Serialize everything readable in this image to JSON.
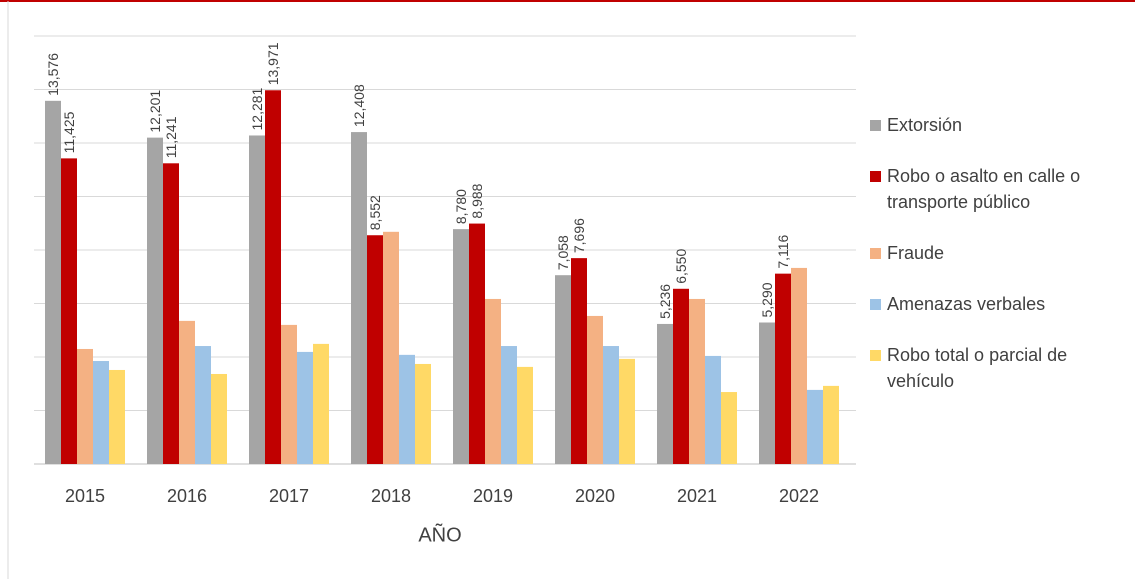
{
  "chart_data": {
    "type": "bar",
    "x_label": "AÑO",
    "categories": [
      "2015",
      "2016",
      "2017",
      "2018",
      "2019",
      "2020",
      "2021",
      "2022"
    ],
    "series": [
      {
        "name": "Extorsión",
        "color": "#a5a5a5",
        "values": [
          13576,
          12201,
          12281,
          12408,
          8780,
          7058,
          5236,
          5290
        ],
        "value_labels": [
          "13,576",
          "12,201",
          "12,281",
          "12,408",
          "8,780",
          "7,058",
          "5,236",
          "5,290"
        ]
      },
      {
        "name": "Robo o asalto en calle o transporte público",
        "color": "#c00000",
        "values": [
          11425,
          11241,
          13971,
          8552,
          8988,
          7696,
          6550,
          7116
        ],
        "value_labels": [
          "11,425",
          "11,241",
          "13,971",
          "8,552",
          "8,988",
          "7,696",
          "6,550",
          "7,116"
        ]
      },
      {
        "name": "Fraude",
        "color": "#f4b183",
        "values": [
          4300,
          5350,
          5200,
          8680,
          6170,
          5535,
          6170,
          7330
        ]
      },
      {
        "name": "Amenazas verbales",
        "color": "#9dc3e6",
        "values": [
          3850,
          4410,
          4190,
          4080,
          4410,
          4410,
          4040,
          2770
        ]
      },
      {
        "name": "Robo total o parcial de vehículo",
        "color": "#ffd966",
        "values": [
          3515,
          3365,
          4490,
          3740,
          3630,
          3930,
          2690,
          2920
        ]
      }
    ],
    "ylim": [
      0,
      16000
    ],
    "yticks": [
      0,
      2000,
      4000,
      6000,
      8000,
      10000,
      12000,
      14000,
      16000
    ],
    "grid": true,
    "legend": "right"
  }
}
